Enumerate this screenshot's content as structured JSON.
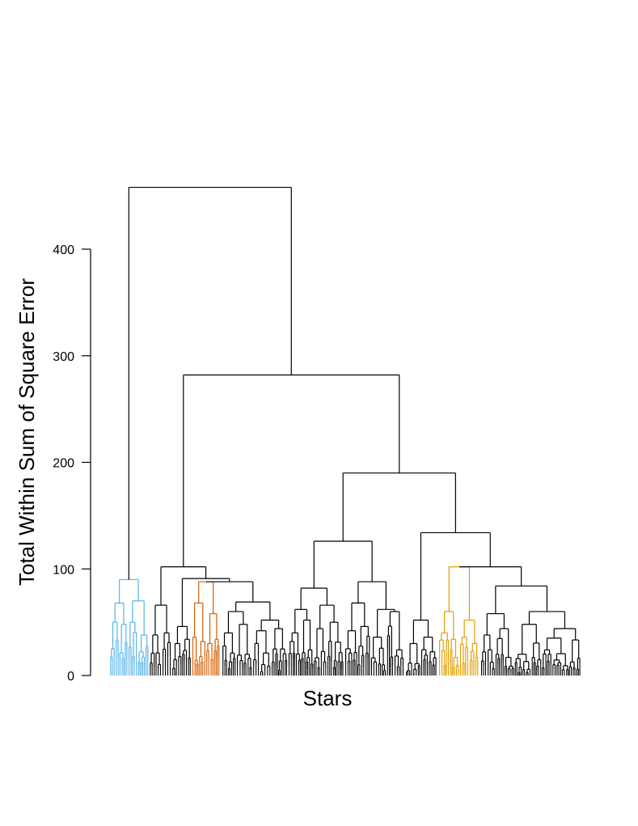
{
  "chart_data": {
    "type": "dendrogram",
    "title": "",
    "xlabel": "Stars",
    "ylabel": "Total Within Sum of Square Error",
    "ylim": [
      0,
      460
    ],
    "yticks": [
      0,
      100,
      200,
      300,
      400
    ],
    "grid": false,
    "legend": "none",
    "cluster_colors": [
      "#56B4E9",
      "#D55E00",
      "#E69F00"
    ],
    "default_color": "#000000",
    "merges": [
      {
        "id": "m_top",
        "height": 458,
        "children": [
          "clusterA",
          "m_282"
        ]
      },
      {
        "id": "m_282",
        "height": 282,
        "children": [
          "m_102",
          "m_190"
        ]
      },
      {
        "id": "m_190",
        "height": 190,
        "children": [
          "m_126",
          "m_134"
        ]
      },
      {
        "id": "m_126",
        "height": 126,
        "children": [
          "m_82",
          "m_88"
        ]
      },
      {
        "id": "m_134",
        "height": 134,
        "children": [
          "m_52",
          "m_102b"
        ]
      },
      {
        "id": "m_102b",
        "height": 102,
        "children": [
          "clusterD",
          "m_84"
        ]
      },
      {
        "id": "m_102",
        "height": 102,
        "children": [
          "m_66",
          "m_91"
        ]
      },
      {
        "id": "m_91",
        "height": 91,
        "children": [
          "m_46",
          "m_88b"
        ]
      },
      {
        "id": "m_88b",
        "height": 88,
        "children": [
          "clusterB",
          "m_69"
        ]
      }
    ],
    "highlighted_clusters": [
      {
        "name": "clusterA",
        "color": "#56B4E9",
        "height": 90
      },
      {
        "name": "clusterB",
        "color": "#D55E00",
        "height": 88
      },
      {
        "name": "clusterD",
        "color": "#E69F00",
        "height": 102
      }
    ]
  }
}
